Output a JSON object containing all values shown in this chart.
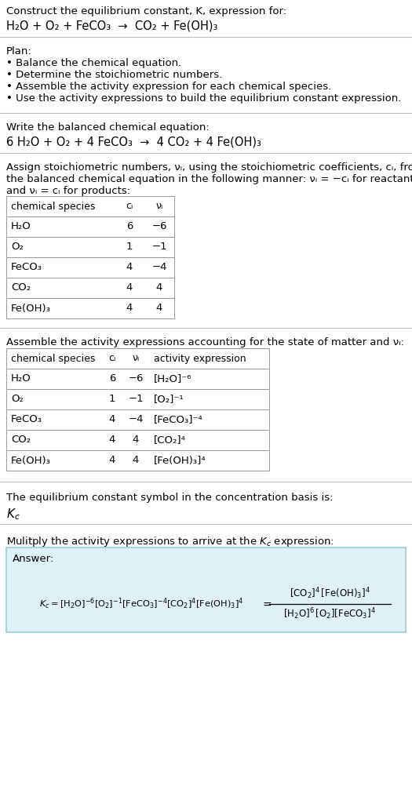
{
  "title_line1": "Construct the equilibrium constant, K, expression for:",
  "title_line2": "H₂O + O₂ + FeCO₃  →  CO₂ + Fe(OH)₃",
  "plan_header": "Plan:",
  "plan_items": [
    "• Balance the chemical equation.",
    "• Determine the stoichiometric numbers.",
    "• Assemble the activity expression for each chemical species.",
    "• Use the activity expressions to build the equilibrium constant expression."
  ],
  "balanced_header": "Write the balanced chemical equation:",
  "balanced_eq": "6 H₂O + O₂ + 4 FeCO₃  →  4 CO₂ + 4 Fe(OH)₃",
  "assign_text1": "Assign stoichiometric numbers, νᵢ, using the stoichiometric coefficients, cᵢ, from",
  "assign_text2": "the balanced chemical equation in the following manner: νᵢ = −cᵢ for reactants",
  "assign_text3": "and νᵢ = cᵢ for products:",
  "table1_headers": [
    "chemical species",
    "cᵢ",
    "νᵢ"
  ],
  "table1_rows": [
    [
      "H₂O",
      "6",
      "−6"
    ],
    [
      "O₂",
      "1",
      "−1"
    ],
    [
      "FeCO₃",
      "4",
      "−4"
    ],
    [
      "CO₂",
      "4",
      "4"
    ],
    [
      "Fe(OH)₃",
      "4",
      "4"
    ]
  ],
  "assemble_header": "Assemble the activity expressions accounting for the state of matter and νᵢ:",
  "table2_headers": [
    "chemical species",
    "cᵢ",
    "νᵢ",
    "activity expression"
  ],
  "table2_rows": [
    [
      "H₂O",
      "6",
      "−6",
      "[H₂O]⁻⁶"
    ],
    [
      "O₂",
      "1",
      "−1",
      "[O₂]⁻¹"
    ],
    [
      "FeCO₃",
      "4",
      "−4",
      "[FeCO₃]⁻⁴"
    ],
    [
      "CO₂",
      "4",
      "4",
      "[CO₂]⁴"
    ],
    [
      "Fe(OH)₃",
      "4",
      "4",
      "[Fe(OH)₃]⁴"
    ]
  ],
  "kc_header": "The equilibrium constant symbol in the concentration basis is:",
  "answer_label": "Answer:",
  "bg_color": "#ffffff",
  "table_line_color": "#999999",
  "answer_box_color": "#dff0f7",
  "answer_box_border": "#99ccdd",
  "text_color": "#000000",
  "separator_color": "#bbbbbb"
}
